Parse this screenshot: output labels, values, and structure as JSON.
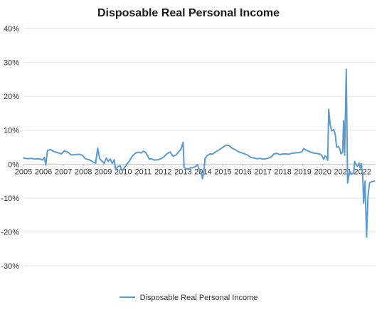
{
  "chart_data": {
    "type": "line",
    "title": "Disposable Real Personal Income",
    "xlabel": "",
    "ylabel": "",
    "ylim": [
      -30,
      40
    ],
    "xlim": [
      2005,
      2022.65
    ],
    "y_ticks": [
      "-30%",
      "-20%",
      "-10%",
      "0%",
      "10%",
      "20%",
      "30%",
      "40%"
    ],
    "x_ticks": [
      "2005",
      "2006",
      "2007",
      "2008",
      "2009",
      "2010",
      "2011",
      "2012",
      "2013",
      "2014",
      "2015",
      "2016",
      "2017",
      "2018",
      "2019",
      "2020",
      "2021",
      "2022"
    ],
    "grid": true,
    "legend_position": "bottom",
    "series": [
      {
        "name": "Disposable Real Personal Income",
        "color": "#5b9bd5",
        "points": [
          [
            2005.0,
            1.8
          ],
          [
            2005.2,
            1.6
          ],
          [
            2005.4,
            1.7
          ],
          [
            2005.55,
            1.5
          ],
          [
            2005.7,
            1.6
          ],
          [
            2005.85,
            1.5
          ],
          [
            2005.95,
            1.2
          ],
          [
            2006.05,
            2.0
          ],
          [
            2006.12,
            -0.3
          ],
          [
            2006.2,
            4.0
          ],
          [
            2006.35,
            4.3
          ],
          [
            2006.5,
            3.8
          ],
          [
            2006.7,
            3.4
          ],
          [
            2006.9,
            3.0
          ],
          [
            2007.05,
            3.9
          ],
          [
            2007.2,
            3.6
          ],
          [
            2007.4,
            2.7
          ],
          [
            2007.6,
            2.8
          ],
          [
            2007.8,
            2.9
          ],
          [
            2007.95,
            2.6
          ],
          [
            2008.1,
            1.6
          ],
          [
            2008.3,
            1.3
          ],
          [
            2008.5,
            0.6
          ],
          [
            2008.62,
            0.3
          ],
          [
            2008.72,
            4.7
          ],
          [
            2008.82,
            1.6
          ],
          [
            2008.92,
            1.0
          ],
          [
            2009.05,
            0.2
          ],
          [
            2009.15,
            1.8
          ],
          [
            2009.25,
            0.8
          ],
          [
            2009.35,
            1.5
          ],
          [
            2009.45,
            0.2
          ],
          [
            2009.55,
            1.3
          ],
          [
            2009.62,
            -1.8
          ],
          [
            2009.72,
            -0.7
          ],
          [
            2009.85,
            -0.5
          ],
          [
            2009.95,
            -2.0
          ],
          [
            2010.05,
            -1.2
          ],
          [
            2010.15,
            -0.2
          ],
          [
            2010.3,
            0.8
          ],
          [
            2010.45,
            2.3
          ],
          [
            2010.6,
            3.2
          ],
          [
            2010.75,
            3.5
          ],
          [
            2010.9,
            3.3
          ],
          [
            2011.0,
            3.8
          ],
          [
            2011.12,
            3.5
          ],
          [
            2011.22,
            2.5
          ],
          [
            2011.32,
            1.4
          ],
          [
            2011.42,
            1.6
          ],
          [
            2011.55,
            1.2
          ],
          [
            2011.75,
            1.3
          ],
          [
            2011.9,
            1.6
          ],
          [
            2012.05,
            2.2
          ],
          [
            2012.2,
            3.1
          ],
          [
            2012.35,
            3.6
          ],
          [
            2012.5,
            2.3
          ],
          [
            2012.65,
            2.7
          ],
          [
            2012.8,
            3.8
          ],
          [
            2012.9,
            4.5
          ],
          [
            2013.0,
            6.4
          ],
          [
            2013.05,
            -1.0
          ],
          [
            2013.2,
            -1.5
          ],
          [
            2013.35,
            -1.2
          ],
          [
            2013.5,
            -1.0
          ],
          [
            2013.6,
            -0.8
          ],
          [
            2013.72,
            -0.2
          ],
          [
            2013.82,
            -1.8
          ],
          [
            2013.9,
            -2.2
          ],
          [
            2013.97,
            -4.3
          ],
          [
            2014.05,
            -2.0
          ],
          [
            2014.1,
            1.6
          ],
          [
            2014.2,
            2.5
          ],
          [
            2014.35,
            3.0
          ],
          [
            2014.5,
            3.0
          ],
          [
            2014.62,
            3.6
          ],
          [
            2014.75,
            4.0
          ],
          [
            2014.9,
            4.6
          ],
          [
            2015.05,
            5.2
          ],
          [
            2015.15,
            5.6
          ],
          [
            2015.3,
            5.5
          ],
          [
            2015.45,
            4.7
          ],
          [
            2015.6,
            4.3
          ],
          [
            2015.8,
            3.6
          ],
          [
            2015.95,
            3.3
          ],
          [
            2016.1,
            3.0
          ],
          [
            2016.25,
            2.6
          ],
          [
            2016.4,
            2.0
          ],
          [
            2016.55,
            1.8
          ],
          [
            2016.7,
            1.6
          ],
          [
            2016.85,
            1.7
          ],
          [
            2017.0,
            1.5
          ],
          [
            2017.15,
            1.6
          ],
          [
            2017.3,
            1.8
          ],
          [
            2017.45,
            2.3
          ],
          [
            2017.55,
            3.0
          ],
          [
            2017.7,
            3.2
          ],
          [
            2017.85,
            2.8
          ],
          [
            2018.0,
            3.0
          ],
          [
            2018.15,
            3.0
          ],
          [
            2018.3,
            2.9
          ],
          [
            2018.45,
            3.2
          ],
          [
            2018.6,
            3.3
          ],
          [
            2018.8,
            3.4
          ],
          [
            2018.95,
            3.6
          ],
          [
            2019.05,
            4.6
          ],
          [
            2019.15,
            4.2
          ],
          [
            2019.3,
            3.8
          ],
          [
            2019.5,
            3.3
          ],
          [
            2019.65,
            3.2
          ],
          [
            2019.85,
            3.0
          ],
          [
            2019.95,
            2.6
          ],
          [
            2020.05,
            1.4
          ],
          [
            2020.12,
            2.4
          ],
          [
            2020.2,
            2.0
          ],
          [
            2020.25,
            1.1
          ],
          [
            2020.3,
            16.2
          ],
          [
            2020.38,
            11.5
          ],
          [
            2020.45,
            9.8
          ],
          [
            2020.55,
            10.2
          ],
          [
            2020.62,
            9.0
          ],
          [
            2020.7,
            5.0
          ],
          [
            2020.78,
            5.2
          ],
          [
            2020.85,
            4.6
          ],
          [
            2020.92,
            3.0
          ],
          [
            2021.0,
            3.6
          ],
          [
            2021.05,
            12.8
          ],
          [
            2021.1,
            2.6
          ],
          [
            2021.18,
            28.0
          ],
          [
            2021.25,
            -5.6
          ],
          [
            2021.35,
            -2.0
          ],
          [
            2021.45,
            -3.0
          ],
          [
            2021.55,
            -2.6
          ],
          [
            2021.6,
            0.8
          ],
          [
            2021.68,
            -0.3
          ],
          [
            2021.75,
            -0.6
          ],
          [
            2021.82,
            0.3
          ],
          [
            2021.88,
            -1.2
          ],
          [
            2021.93,
            0.1
          ],
          [
            2022.0,
            -3.0
          ],
          [
            2022.05,
            -11.5
          ],
          [
            2022.12,
            -5.0
          ],
          [
            2022.2,
            -21.5
          ],
          [
            2022.27,
            -9.5
          ],
          [
            2022.35,
            -5.5
          ],
          [
            2022.45,
            -5.2
          ],
          [
            2022.6,
            -5.0
          ]
        ]
      }
    ]
  }
}
